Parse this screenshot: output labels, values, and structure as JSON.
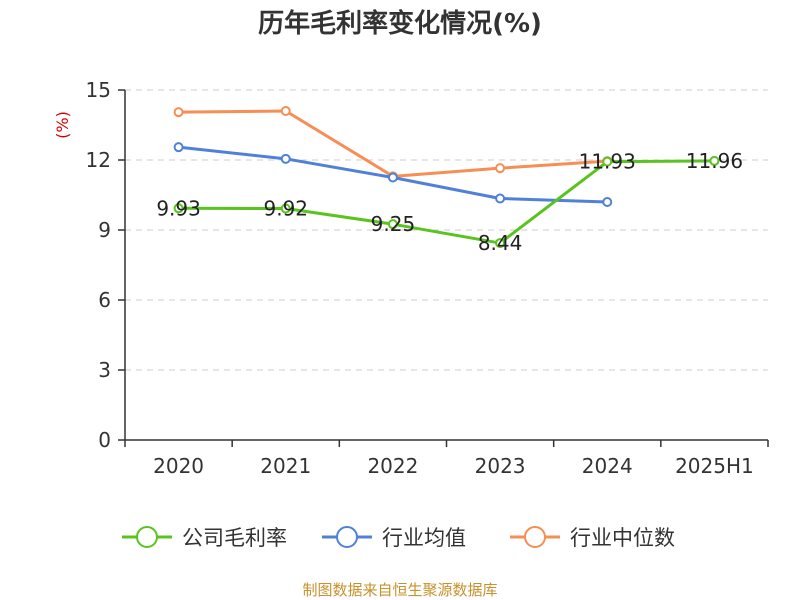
{
  "chart_data": {
    "type": "line",
    "title": "历年毛利率变化情况(%)",
    "ylabel": "(%)",
    "xlabel": "",
    "categories": [
      "2020",
      "2021",
      "2022",
      "2023",
      "2024",
      "2025H1"
    ],
    "ylim": [
      0,
      15
    ],
    "yticks": [
      0,
      3,
      6,
      9,
      12,
      15
    ],
    "grid": true,
    "legend": "bottom",
    "series": [
      {
        "name": "公司毛利率",
        "color": "#5ac31f",
        "values": [
          9.93,
          9.92,
          9.25,
          8.44,
          11.93,
          11.96
        ],
        "labels": [
          "9.93",
          "9.92",
          "9.25",
          "8.44",
          "11.93",
          "11.96"
        ]
      },
      {
        "name": "行业均值",
        "color": "#4f81d8",
        "values": [
          12.55,
          12.05,
          11.25,
          10.35,
          10.2,
          null
        ]
      },
      {
        "name": "行业中位数",
        "color": "#f68e55",
        "values": [
          14.05,
          14.1,
          11.3,
          11.65,
          11.95,
          null
        ]
      }
    ]
  },
  "source": "制图数据来自恒生聚源数据库"
}
